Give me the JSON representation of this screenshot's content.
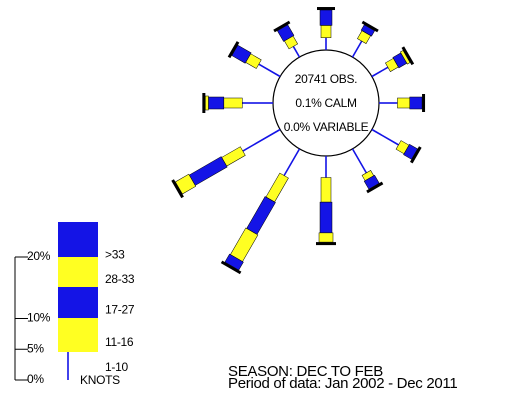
{
  "chart_data": {
    "type": "windrose",
    "center_lines": [
      "20741 OBS.",
      "0.1% CALM",
      "0.0% VARIABLE"
    ],
    "categories": [
      null,
      null,
      null,
      null,
      null,
      null,
      null,
      null,
      null,
      null,
      null,
      null
    ],
    "series": [
      {
        "name": "1-10",
        "color": "#1414e6",
        "values": [
          2,
          3,
          3,
          3,
          5,
          4.5,
          3.5,
          5,
          7,
          5,
          4,
          2
        ]
      },
      {
        "name": "11-16",
        "color": "#ffff22",
        "values": [
          2,
          1.5,
          1.5,
          2,
          1.5,
          1,
          4,
          4.5,
          3.5,
          3,
          2,
          1.5
        ]
      },
      {
        "name": "17-27",
        "color": "#1414e6",
        "values": [
          2.5,
          1,
          1.5,
          2,
          1.5,
          1.5,
          5,
          6,
          6,
          2.5,
          2.5,
          2
        ]
      },
      {
        "name": "28-33",
        "color": "#ffff22",
        "values": [
          0,
          0,
          0.5,
          0,
          0,
          0,
          1.5,
          5,
          2.5,
          0.5,
          0,
          0
        ]
      },
      {
        "name": ">33",
        "color": "#1414e6",
        "values": [
          0,
          0,
          0,
          0,
          0,
          0,
          0,
          1.5,
          0,
          0,
          0,
          0
        ]
      }
    ],
    "legend_unit": "KNOTS",
    "rlim": [
      0,
      20
    ],
    "rticks": [
      {
        "value": 0,
        "label": "0%"
      },
      {
        "value": 5,
        "label": "5%"
      },
      {
        "value": 10,
        "label": "10%"
      },
      {
        "value": 20,
        "label": "20%"
      }
    ],
    "footer": [
      "SEASON: DEC TO FEB",
      "Period of data: Jan 2002 - Dec 2011"
    ]
  }
}
